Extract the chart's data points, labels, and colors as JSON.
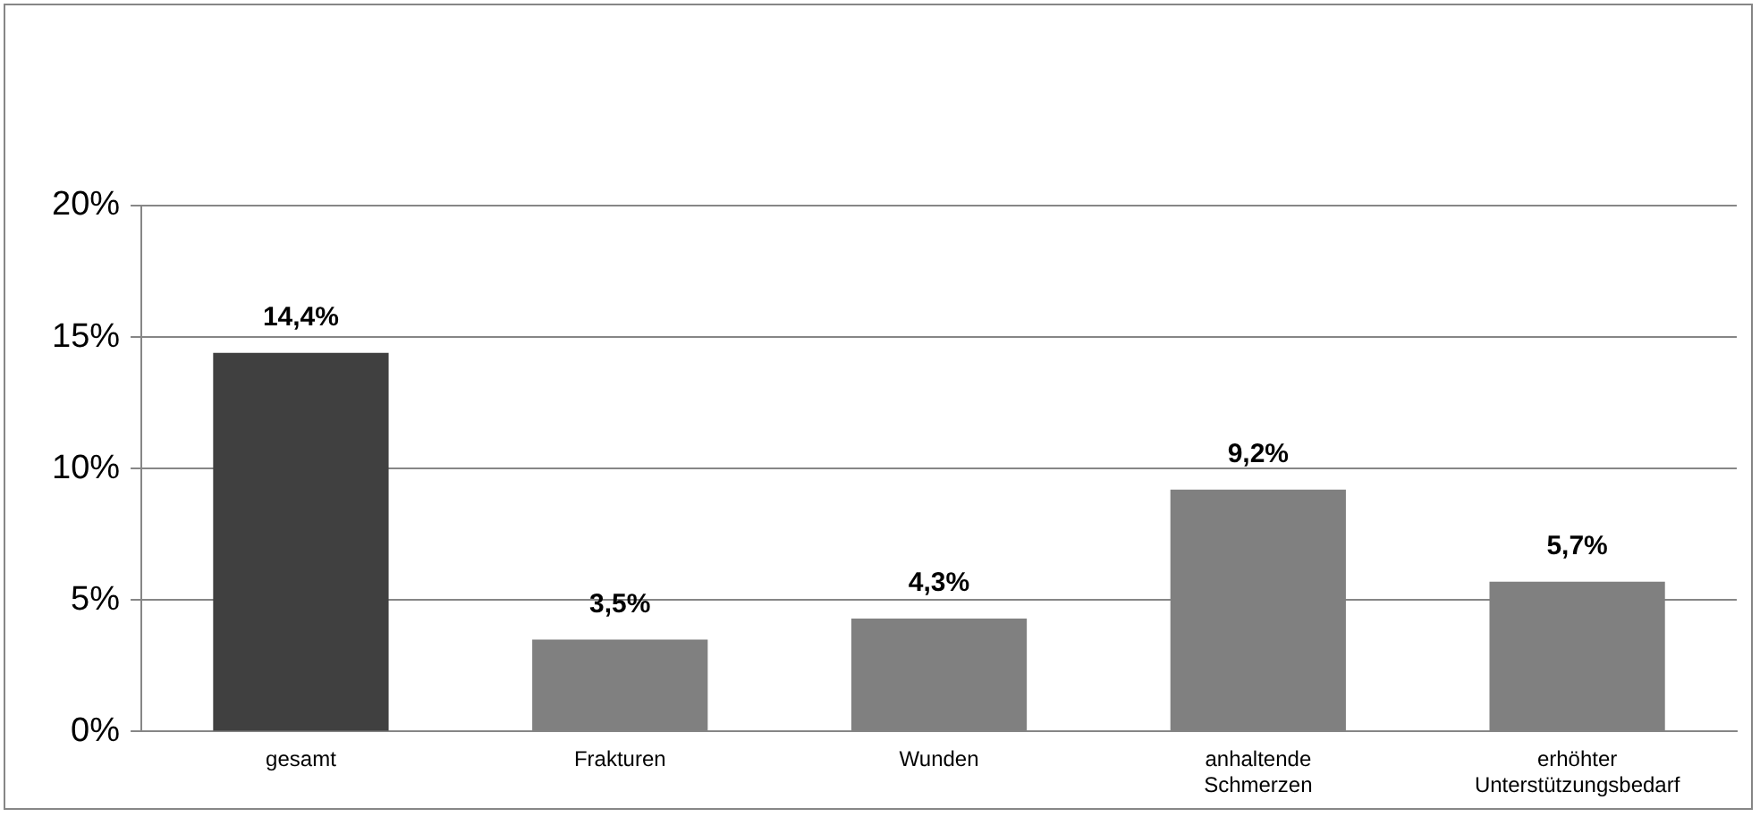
{
  "chart_data": {
    "type": "bar",
    "categories": [
      "gesamt",
      "Frakturen",
      "Wunden",
      "anhaltende Schmerzen",
      "erhöhter Unterstützungsbedarf"
    ],
    "values": [
      14.4,
      3.5,
      4.3,
      9.2,
      5.7
    ],
    "colors": [
      "#404040",
      "#808080",
      "#808080",
      "#808080",
      "#808080"
    ],
    "value_labels": [
      "14,4%",
      "3,5%",
      "4,3%",
      "9,2%",
      "5,7%"
    ],
    "ylim": [
      0,
      20
    ],
    "yticks": [
      {
        "value": 0,
        "label": "0%"
      },
      {
        "value": 5,
        "label": "5%"
      },
      {
        "value": 10,
        "label": "10%"
      },
      {
        "value": 15,
        "label": "15%"
      },
      {
        "value": 20,
        "label": "20%"
      }
    ],
    "grid": "y",
    "legend": false
  }
}
